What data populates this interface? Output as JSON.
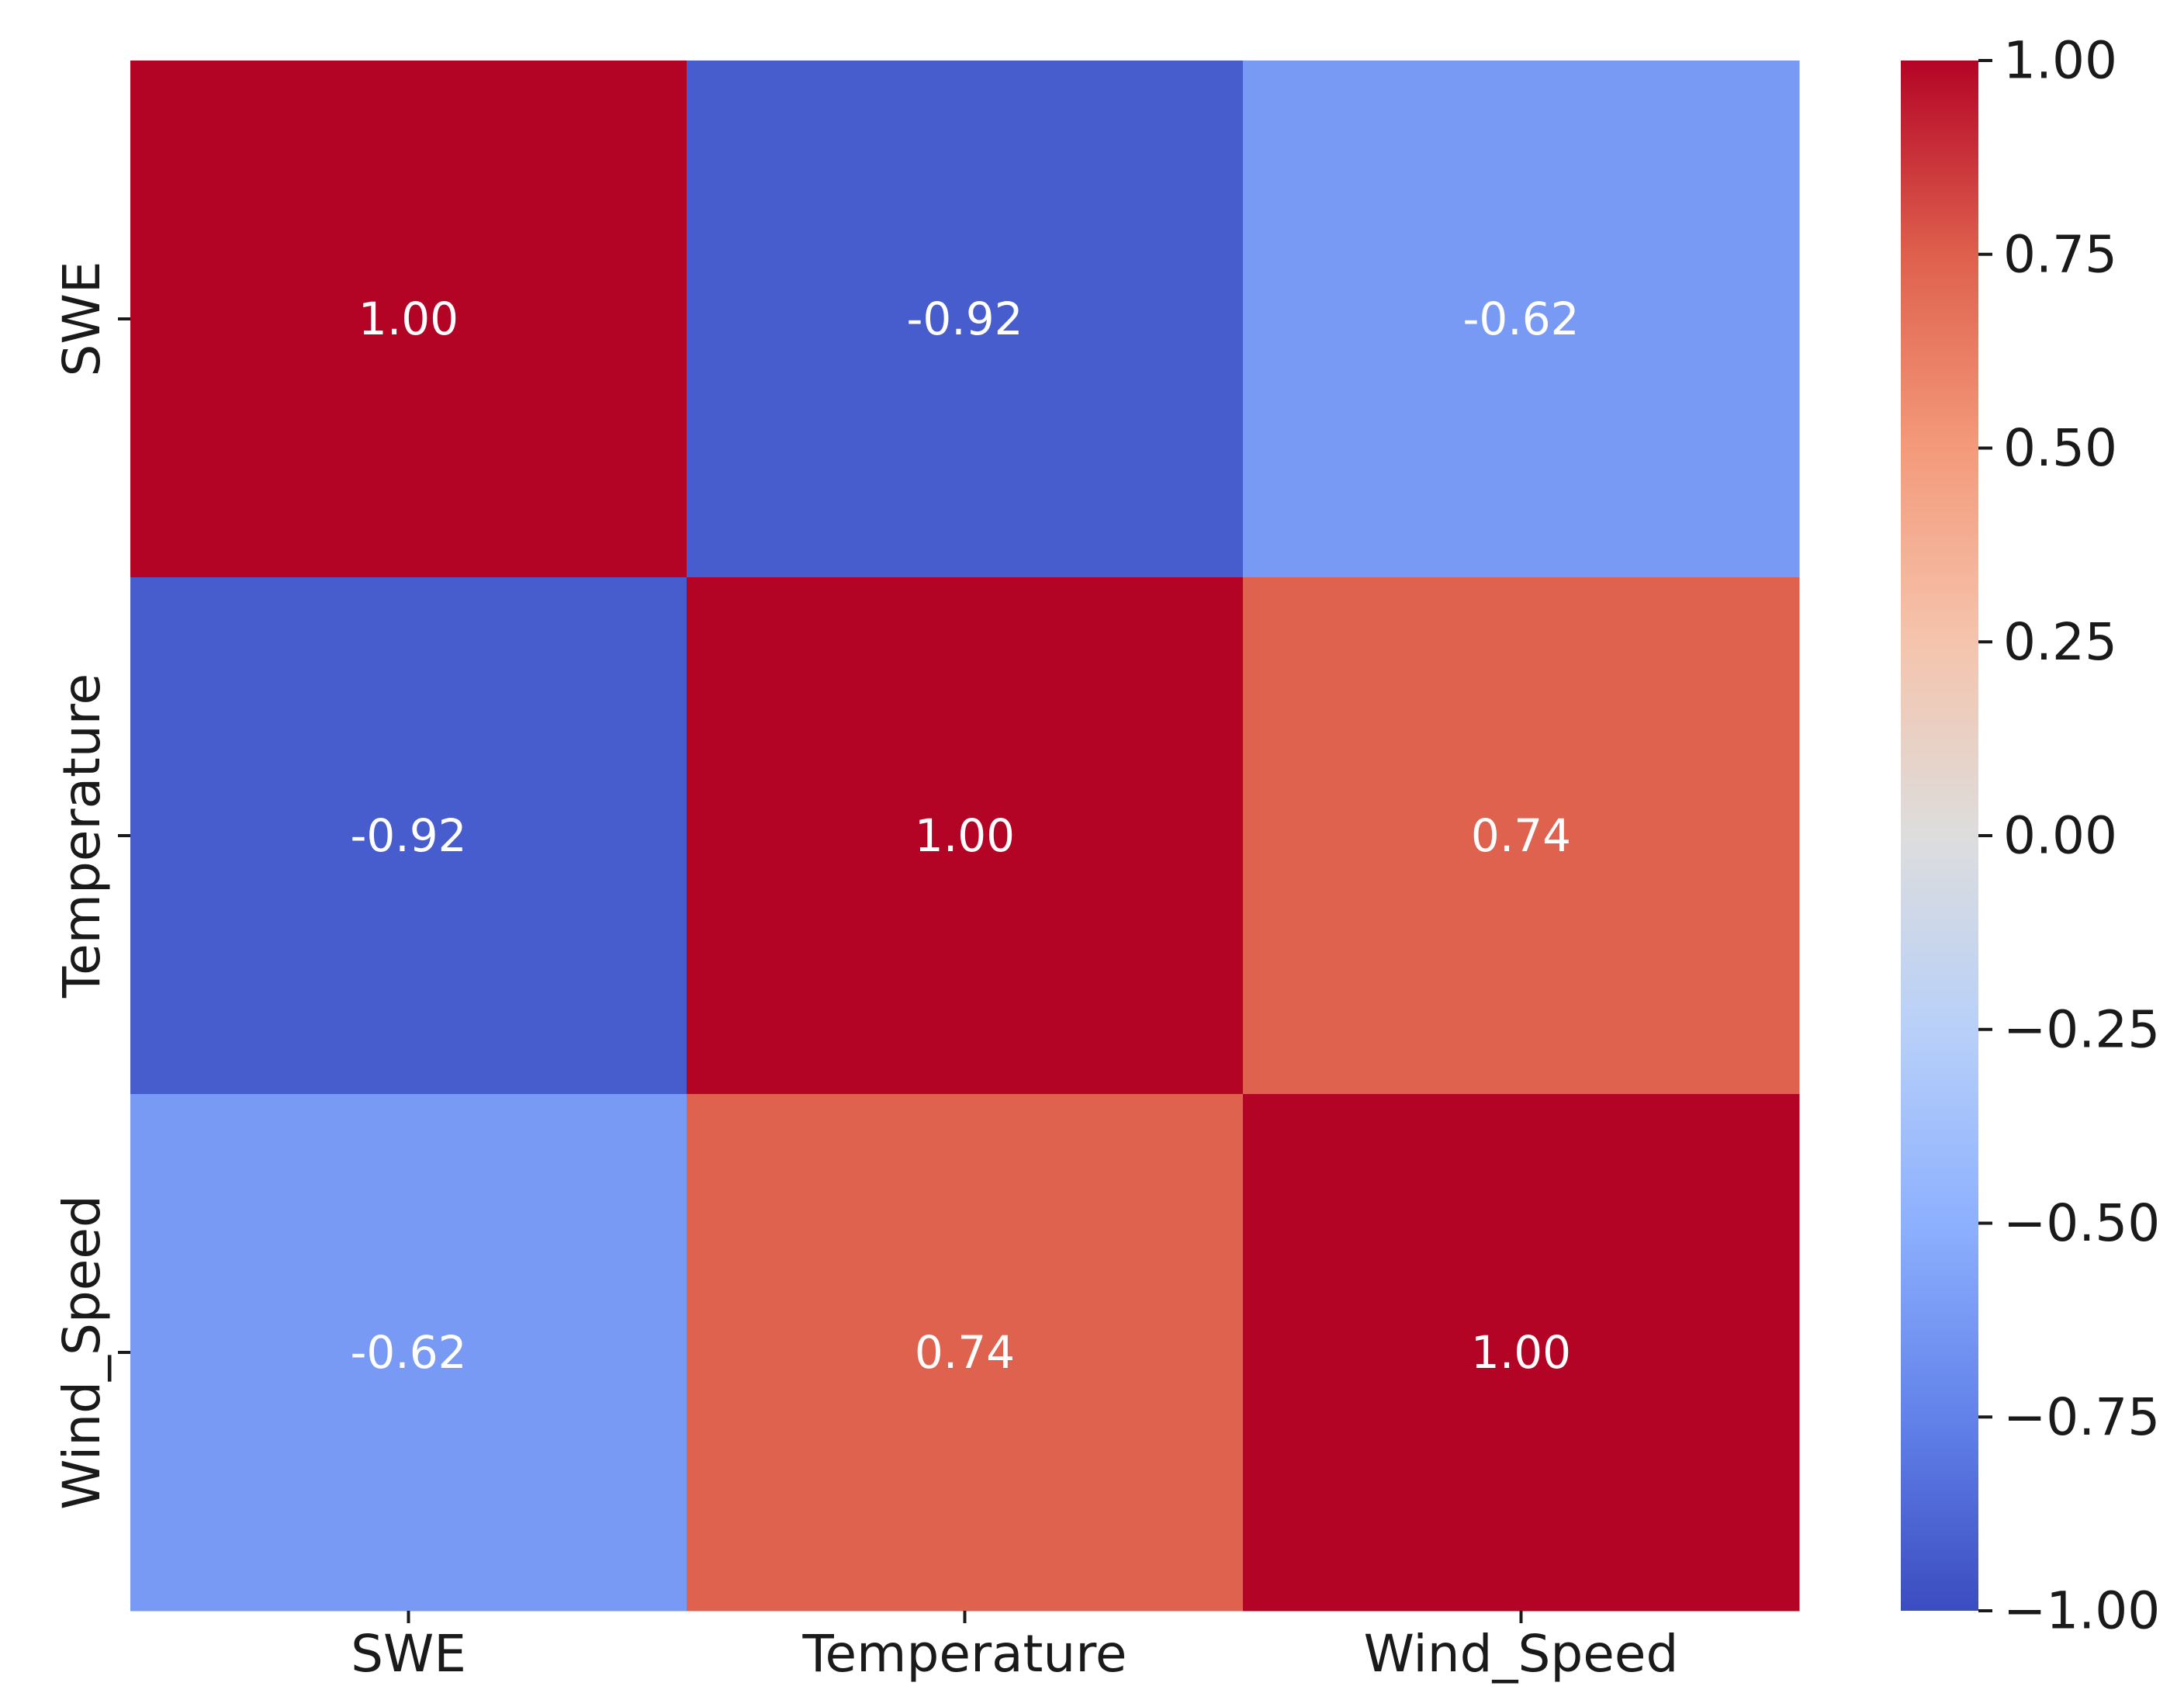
{
  "chart_data": {
    "type": "heatmap",
    "categories_x": [
      "SWE",
      "Temperature",
      "Wind_Speed"
    ],
    "categories_y": [
      "SWE",
      "Temperature",
      "Wind_Speed"
    ],
    "values": [
      [
        1.0,
        -0.92,
        -0.62
      ],
      [
        -0.92,
        1.0,
        0.74
      ],
      [
        -0.62,
        0.74,
        1.0
      ]
    ],
    "value_labels": [
      [
        "1.00",
        "-0.92",
        "-0.62"
      ],
      [
        "-0.92",
        "1.00",
        "0.74"
      ],
      [
        "-0.62",
        "0.74",
        "1.00"
      ]
    ],
    "colormap": "coolwarm",
    "vmin": -1.0,
    "vmax": 1.0,
    "colorbar_ticks": [
      1.0,
      0.75,
      0.5,
      0.25,
      0.0,
      -0.25,
      -0.5,
      -0.75,
      -1.0
    ],
    "colorbar_tick_labels": [
      "1.00",
      "0.75",
      "0.50",
      "0.25",
      "0.00",
      "−0.25",
      "−0.50",
      "−0.75",
      "−1.00"
    ],
    "colorbar_position": "right",
    "grid": false
  }
}
